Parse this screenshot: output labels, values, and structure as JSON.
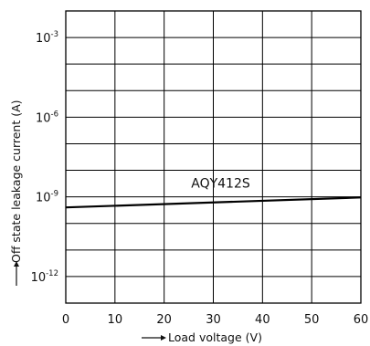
{
  "chart_data": {
    "type": "line",
    "title": "",
    "xlabel": "Load voltage (V)",
    "ylabel": "Off state leakage current (A)",
    "xlim": [
      0,
      60
    ],
    "ylim_exponent": [
      -13,
      -2
    ],
    "y_scale": "log",
    "x_ticks": [
      "0",
      "10",
      "20",
      "30",
      "40",
      "50",
      "60"
    ],
    "y_ticks": [
      {
        "base": "10",
        "exp": "-3"
      },
      {
        "base": "10",
        "exp": "-6"
      },
      {
        "base": "10",
        "exp": "-9"
      },
      {
        "base": "10",
        "exp": "-12"
      }
    ],
    "grid": true,
    "series": [
      {
        "name": "AQY412S",
        "x": [
          0,
          60
        ],
        "y": [
          4e-10,
          9.5e-10
        ],
        "color": "#000000"
      }
    ],
    "annotations": [
      {
        "text": "AQY412S",
        "x": 30,
        "y": 2.2e-09
      }
    ]
  }
}
